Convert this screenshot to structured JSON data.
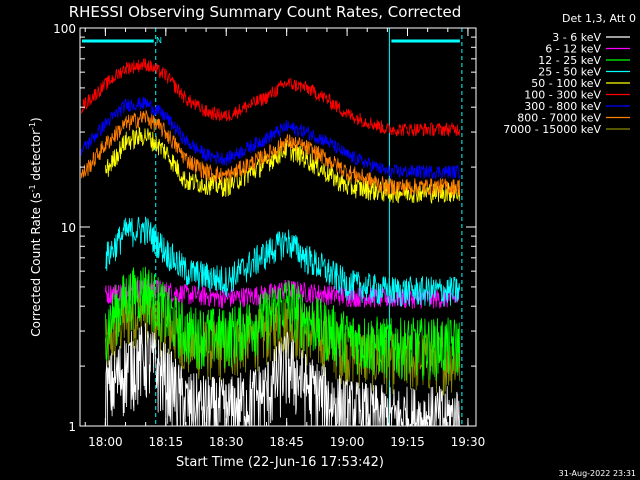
{
  "chart_data": {
    "type": "line",
    "title": "RHESSI Observing Summary Count Rates, Corrected",
    "xlabel": "Start Time (22-Jun-16 17:53:42)",
    "ylabel_main": "Corrected Count Rate (s",
    "ylabel_sup1": "-1",
    "ylabel_mid": " detector",
    "ylabel_sup2": "-1",
    "ylabel_end": ")",
    "y_scale": "log",
    "ylim": [
      1,
      100
    ],
    "xlim": [
      "17:53:42",
      "19:32:00"
    ],
    "x_ticks": [
      "18:00",
      "18:15",
      "18:30",
      "18:45",
      "19:00",
      "19:15",
      "19:30"
    ],
    "y_ticks": [
      "1",
      "10",
      "100"
    ],
    "timestamp": "31-Aug-2022 23:31",
    "legend_title": "Det 1,3, Att 0",
    "night_flag": "N",
    "series": [
      {
        "name": "3 - 6 keV",
        "color": "#ffffff",
        "x": [
          "18:00",
          "18:05",
          "18:10",
          "18:15",
          "18:20",
          "18:30",
          "18:40",
          "18:45",
          "18:50",
          "19:00",
          "19:10",
          "19:20",
          "19:28"
        ],
        "values": [
          1.5,
          2.0,
          2.3,
          1.8,
          1.3,
          1.2,
          1.5,
          2.1,
          1.6,
          1.2,
          1.1,
          1.1,
          1.1
        ]
      },
      {
        "name": "6 - 12 keV",
        "color": "#ff00ff",
        "x": [
          "18:00",
          "18:05",
          "18:10",
          "18:15",
          "18:20",
          "18:30",
          "18:40",
          "18:45",
          "18:50",
          "19:00",
          "19:10",
          "19:20",
          "19:28"
        ],
        "values": [
          4.6,
          4.8,
          5.0,
          4.8,
          4.6,
          4.4,
          4.6,
          4.9,
          4.7,
          4.5,
          4.4,
          4.4,
          4.4
        ]
      },
      {
        "name": "12 - 25 keV",
        "color": "#00ff00",
        "x": [
          "18:00",
          "18:05",
          "18:10",
          "18:15",
          "18:20",
          "18:30",
          "18:40",
          "18:45",
          "18:50",
          "19:00",
          "19:10",
          "19:20",
          "19:28"
        ],
        "values": [
          3.2,
          4.5,
          5.0,
          3.8,
          3.0,
          2.9,
          3.6,
          4.3,
          3.5,
          2.8,
          2.6,
          2.6,
          2.6
        ]
      },
      {
        "name": "25 - 50 keV",
        "color": "#00ffff",
        "x": [
          "18:00",
          "18:05",
          "18:10",
          "18:15",
          "18:20",
          "18:30",
          "18:40",
          "18:45",
          "18:50",
          "19:00",
          "19:10",
          "19:20",
          "19:28"
        ],
        "values": [
          7.0,
          9.5,
          9.8,
          7.6,
          6.0,
          5.4,
          7.4,
          8.6,
          7.0,
          5.2,
          4.8,
          4.8,
          4.8
        ]
      },
      {
        "name": "50 - 100 keV",
        "color": "#ffff00",
        "x": [
          "18:00",
          "18:05",
          "18:10",
          "18:15",
          "18:20",
          "18:30",
          "18:40",
          "18:45",
          "18:50",
          "19:00",
          "19:10",
          "19:20",
          "19:28"
        ],
        "values": [
          19,
          27,
          29,
          24,
          17,
          16,
          21,
          25,
          22,
          16,
          15,
          15,
          15
        ]
      },
      {
        "name": "100 - 300 keV",
        "color": "#ff0000",
        "x": [
          "17:54",
          "18:00",
          "18:05",
          "18:10",
          "18:15",
          "18:20",
          "18:25",
          "18:30",
          "18:40",
          "18:45",
          "18:50",
          "18:55",
          "19:00",
          "19:10",
          "19:20",
          "19:28"
        ],
        "values": [
          40,
          52,
          63,
          66,
          58,
          44,
          38,
          36,
          45,
          53,
          50,
          44,
          37,
          31,
          31,
          31
        ]
      },
      {
        "name": "300 - 800 keV",
        "color": "#0000ff",
        "x": [
          "17:54",
          "18:00",
          "18:05",
          "18:10",
          "18:15",
          "18:20",
          "18:25",
          "18:30",
          "18:40",
          "18:45",
          "18:50",
          "18:55",
          "19:00",
          "19:10",
          "19:20",
          "19:28"
        ],
        "values": [
          24,
          33,
          41,
          42,
          36,
          27,
          23,
          22,
          28,
          32,
          30,
          27,
          23,
          19,
          19,
          19
        ]
      },
      {
        "name": "800 - 7000 keV",
        "color": "#ff7f00",
        "x": [
          "17:54",
          "18:00",
          "18:05",
          "18:10",
          "18:15",
          "18:20",
          "18:25",
          "18:30",
          "18:40",
          "18:45",
          "18:50",
          "18:55",
          "19:00",
          "19:10",
          "19:20",
          "19:28"
        ],
        "values": [
          18,
          26,
          33,
          36,
          30,
          22,
          19,
          18,
          23,
          27,
          25,
          22,
          19,
          16,
          16,
          16
        ]
      },
      {
        "name": "7000 - 15000 keV",
        "color": "#8b8b00",
        "x": [
          "18:00",
          "18:05",
          "18:10",
          "18:15",
          "18:20",
          "18:30",
          "18:40",
          "18:45",
          "18:50",
          "19:00",
          "19:10",
          "19:20",
          "19:28"
        ],
        "values": [
          2.5,
          3.5,
          4.0,
          3.2,
          2.6,
          2.5,
          3.0,
          3.4,
          3.0,
          2.4,
          2.2,
          2.2,
          2.2
        ]
      }
    ],
    "attenuator_spans": [
      {
        "start": "17:53:42",
        "end": "18:12:30"
      },
      {
        "start": "19:10:30",
        "end": "19:28:30"
      }
    ],
    "flag_lines": [
      "18:12:30",
      "19:10:30",
      "19:28:30"
    ]
  }
}
